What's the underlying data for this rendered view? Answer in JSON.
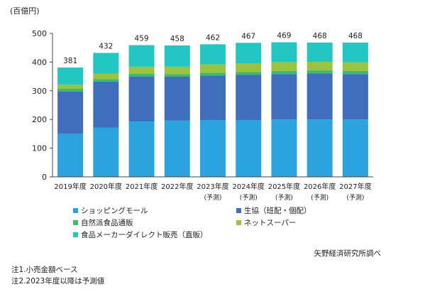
{
  "chart_data": {
    "type": "bar",
    "stacked": true,
    "unit_label": "(百億円)",
    "categories": [
      "2019年度",
      "2020年度",
      "2021年度",
      "2022年度",
      "2023年度",
      "2024年度",
      "2025年度",
      "2026年度",
      "2027年度"
    ],
    "category_sublabels": [
      "",
      "",
      "",
      "",
      "(予測)",
      "(予測)",
      "(予測)",
      "(予測)",
      "(予測)"
    ],
    "ylim": [
      0,
      500
    ],
    "yticks": [
      0,
      100,
      200,
      300,
      400,
      500
    ],
    "totals": [
      381,
      432,
      459,
      458,
      462,
      467,
      469,
      468,
      468
    ],
    "series": [
      {
        "name": "ショッピングモール",
        "color": "#2aa3de",
        "values": [
          150,
          172,
          193,
          196,
          198,
          198,
          200,
          200,
          200
        ]
      },
      {
        "name": "生協（班配・個配）",
        "color": "#3f6ebd",
        "values": [
          147,
          160,
          157,
          153,
          155,
          158,
          158,
          160,
          158
        ]
      },
      {
        "name": "自然派食品通販",
        "color": "#3fb96b",
        "values": [
          10,
          9,
          9,
          9,
          10,
          10,
          11,
          11,
          11
        ]
      },
      {
        "name": "ネットスーパー",
        "color": "#9bc33f",
        "values": [
          14,
          19,
          25,
          26,
          29,
          30,
          31,
          30,
          30
        ]
      },
      {
        "name": "食品メーカーダイレクト販売（直販）",
        "color": "#22c6c2",
        "values": [
          60,
          72,
          75,
          74,
          70,
          71,
          69,
          67,
          69
        ]
      }
    ],
    "legend_placement": "bottom",
    "grid": false
  },
  "source": "矢野経済研究所調べ",
  "notes": [
    "注1.小売金額ベース",
    "注2.2023年度以降は予測値"
  ]
}
